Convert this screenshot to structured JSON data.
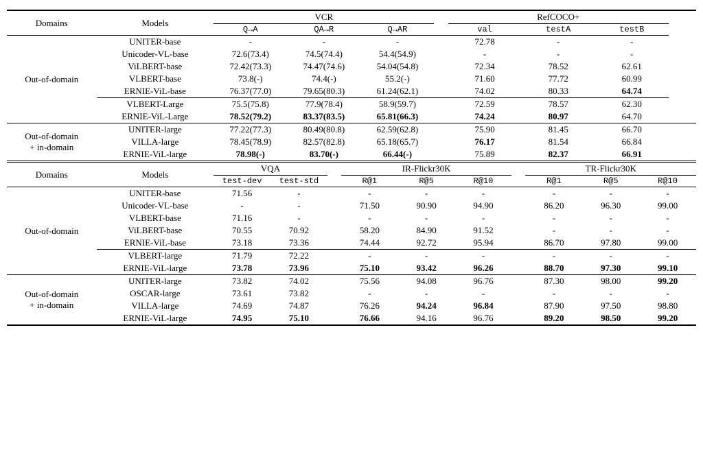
{
  "top": {
    "hdr": {
      "domains": "Domains",
      "models": "Models",
      "vcr": "VCR",
      "refcoco": "RefCOCO+",
      "qa": "Q→A",
      "qar": "QA→R",
      "q_ar": "Q→AR",
      "val": "val",
      "testA": "testA",
      "testB": "testB"
    },
    "ood_label": "Out-of-domain",
    "ood_id_label1": "Out-of-domain",
    "ood_id_label2": "+ in-domain",
    "rows": [
      {
        "model": "UNITER-base",
        "qa": "-",
        "qar": "-",
        "q_ar": "-",
        "val": "72.78",
        "ta": "-",
        "tb": "-"
      },
      {
        "model": "Unicoder-VL-base",
        "qa": "72.6(73.4)",
        "qar": "74.5(74.4)",
        "q_ar": "54.4(54.9)",
        "val": "-",
        "ta": "-",
        "tb": "-"
      },
      {
        "model": "ViLBERT-base",
        "qa": "72.42(73.3)",
        "qar": "74.47(74.6)",
        "q_ar": "54.04(54.8)",
        "val": "72.34",
        "ta": "78.52",
        "tb": "62.61"
      },
      {
        "model": "VLBERT-base",
        "qa": "73.8(-)",
        "qar": "74.4(-)",
        "q_ar": "55.2(-)",
        "val": "71.60",
        "ta": "77.72",
        "tb": "60.99"
      },
      {
        "model": "ERNIE-ViL-base",
        "qa": "76.37(77.0)",
        "qar": "79.65(80.3)",
        "q_ar": "61.24(62.1)",
        "val": "74.02",
        "ta": "80.33",
        "tb": "64.74",
        "bold": [
          "tb"
        ]
      },
      {
        "model": "VLBERT-Large",
        "qa": "75.5(75.8)",
        "qar": "77.9(78.4)",
        "q_ar": "58.9(59.7)",
        "val": "72.59",
        "ta": "78.57",
        "tb": "62.30"
      },
      {
        "model": "ERNIE-ViL-Large",
        "qa": "78.52(79.2)",
        "qar": "83.37(83.5)",
        "q_ar": "65.81(66.3)",
        "val": "74.24",
        "ta": "80.97",
        "tb": "64.70",
        "bold": [
          "qa",
          "qar",
          "q_ar",
          "val",
          "ta"
        ]
      }
    ],
    "rows2": [
      {
        "model": "UNITER-large",
        "qa": "77.22(77.3)",
        "qar": "80.49(80.8)",
        "q_ar": "62.59(62.8)",
        "val": "75.90",
        "ta": "81.45",
        "tb": "66.70"
      },
      {
        "model": "VILLA-large",
        "qa": "78.45(78.9)",
        "qar": "82.57(82.8)",
        "q_ar": "65.18(65.7)",
        "val": "76.17",
        "ta": "81.54",
        "tb": "66.84",
        "bold": [
          "val"
        ]
      },
      {
        "model": "ERNIE-ViL-large",
        "qa": "78.98(-)",
        "qar": "83.70(-)",
        "q_ar": "66.44(-)",
        "val": "75.89",
        "ta": "82.37",
        "tb": "66.91",
        "bold": [
          "qa",
          "qar",
          "q_ar",
          "ta",
          "tb"
        ]
      }
    ]
  },
  "bot": {
    "hdr": {
      "domains": "Domains",
      "models": "Models",
      "vqa": "VQA",
      "ir": "IR-Flickr30K",
      "tr": "TR-Flickr30K",
      "tdev": "test-dev",
      "tstd": "test-std",
      "r1": "R@1",
      "r5": "R@5",
      "r10": "R@10"
    },
    "ood_label": "Out-of-domain",
    "ood_id_label1": "Out-of-domain",
    "ood_id_label2": "+ in-domain",
    "rows": [
      {
        "model": "UNITER-base",
        "td": "71.56",
        "ts": "-",
        "ir1": "-",
        "ir5": "-",
        "ir10": "-",
        "tr1": "-",
        "tr5": "-",
        "tr10": "-"
      },
      {
        "model": "Unicoder-VL-base",
        "td": "-",
        "ts": "-",
        "ir1": "71.50",
        "ir5": "90.90",
        "ir10": "94.90",
        "tr1": "86.20",
        "tr5": "96.30",
        "tr10": "99.00"
      },
      {
        "model": "VLBERT-base",
        "td": "71.16",
        "ts": "-",
        "ir1": "-",
        "ir5": "-",
        "ir10": "-",
        "tr1": "-",
        "tr5": "-",
        "tr10": "-"
      },
      {
        "model": "ViLBERT-base",
        "td": "70.55",
        "ts": "70.92",
        "ir1": "58.20",
        "ir5": "84.90",
        "ir10": "91.52",
        "tr1": "-",
        "tr5": "-",
        "tr10": "-"
      },
      {
        "model": "ERNIE-ViL-base",
        "td": "73.18",
        "ts": "73.36",
        "ir1": "74.44",
        "ir5": "92.72",
        "ir10": "95.94",
        "tr1": "86.70",
        "tr5": "97.80",
        "tr10": "99.00"
      },
      {
        "model": "VLBERT-large",
        "td": "71.79",
        "ts": "72.22",
        "ir1": "-",
        "ir5": "-",
        "ir10": "-",
        "tr1": "-",
        "tr5": "-",
        "tr10": "-"
      },
      {
        "model": "ERNIE-ViL-large",
        "td": "73.78",
        "ts": "73.96",
        "ir1": "75.10",
        "ir5": "93.42",
        "ir10": "96.26",
        "tr1": "88.70",
        "tr5": "97.30",
        "tr10": "99.10",
        "bold": [
          "td",
          "ts",
          "ir1",
          "ir5",
          "ir10",
          "tr1",
          "tr5",
          "tr10"
        ]
      }
    ],
    "rows2": [
      {
        "model": "UNITER-large",
        "td": "73.82",
        "ts": "74.02",
        "ir1": "75.56",
        "ir5": "94.08",
        "ir10": "96.76",
        "tr1": "87.30",
        "tr5": "98.00",
        "tr10": "99.20",
        "bold": [
          "tr10"
        ]
      },
      {
        "model": "OSCAR-large",
        "td": "73.61",
        "ts": "73.82",
        "ir1": "-",
        "ir5": "-",
        "ir10": "-",
        "tr1": "-",
        "tr5": "-",
        "tr10": "-"
      },
      {
        "model": "VILLA-large",
        "td": "74.69",
        "ts": "74.87",
        "ir1": "76.26",
        "ir5": "94.24",
        "ir10": "96.84",
        "tr1": "87.90",
        "tr5": "97.50",
        "tr10": "98.80",
        "bold": [
          "ir5",
          "ir10"
        ]
      },
      {
        "model": "ERNIE-ViL-large",
        "td": "74.95",
        "ts": "75.10",
        "ir1": "76.66",
        "ir5": "94.16",
        "ir10": "96.76",
        "tr1": "89.20",
        "tr5": "98.50",
        "tr10": "99.20",
        "bold": [
          "td",
          "ts",
          "ir1",
          "tr1",
          "tr5",
          "tr10"
        ]
      }
    ]
  }
}
